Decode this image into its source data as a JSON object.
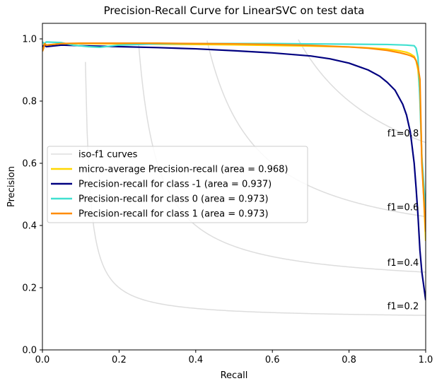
{
  "chart_data": {
    "type": "line",
    "title": "Precision-Recall Curve for LinearSVC on test data",
    "xlabel": "Recall",
    "ylabel": "Precision",
    "xlim": [
      0,
      1
    ],
    "ylim": [
      0,
      1.05
    ],
    "xticks": [
      "0.0",
      "0.2",
      "0.4",
      "0.6",
      "0.8",
      "1.0"
    ],
    "yticks": [
      "0.0",
      "0.2",
      "0.4",
      "0.6",
      "0.8",
      "1.0"
    ],
    "grid": false,
    "legend_position": "center-left",
    "iso_f1": {
      "legend_label": "iso-f1 curves",
      "color": "#dddddd",
      "values": [
        0.2,
        0.4,
        0.6,
        0.8
      ],
      "labels": [
        "f1=0.2",
        "f1=0.4",
        "f1=0.6",
        "f1=0.8"
      ]
    },
    "series": [
      {
        "name": "micro-average Precision-recall (area = 0.968)",
        "color": "#ffd700",
        "x": [
          0.0,
          0.005,
          0.01,
          0.05,
          0.1,
          0.2,
          0.3,
          0.4,
          0.5,
          0.6,
          0.7,
          0.8,
          0.85,
          0.9,
          0.93,
          0.95,
          0.96,
          0.97,
          0.975,
          0.98,
          0.985,
          0.99,
          1.0
        ],
        "y": [
          0.97,
          0.985,
          0.98,
          0.985,
          0.985,
          0.984,
          0.983,
          0.982,
          0.981,
          0.979,
          0.977,
          0.974,
          0.971,
          0.967,
          0.962,
          0.957,
          0.952,
          0.944,
          0.93,
          0.9,
          0.82,
          0.62,
          0.35
        ]
      },
      {
        "name": "Precision-recall for class -1 (area = 0.937)",
        "color": "#000080",
        "x": [
          0.0,
          0.005,
          0.01,
          0.05,
          0.1,
          0.2,
          0.3,
          0.4,
          0.5,
          0.6,
          0.7,
          0.75,
          0.8,
          0.85,
          0.88,
          0.9,
          0.92,
          0.94,
          0.95,
          0.96,
          0.97,
          0.975,
          0.98,
          0.985,
          0.99,
          1.0
        ],
        "y": [
          0.975,
          0.98,
          0.975,
          0.98,
          0.978,
          0.975,
          0.972,
          0.968,
          0.962,
          0.955,
          0.945,
          0.936,
          0.922,
          0.9,
          0.88,
          0.86,
          0.835,
          0.79,
          0.755,
          0.7,
          0.6,
          0.52,
          0.43,
          0.32,
          0.25,
          0.16
        ]
      },
      {
        "name": "Precision-recall for class 0 (area = 0.973)",
        "color": "#40e0d0",
        "x": [
          0.0,
          0.005,
          0.01,
          0.05,
          0.08,
          0.12,
          0.15,
          0.2,
          0.3,
          0.4,
          0.5,
          0.6,
          0.7,
          0.8,
          0.9,
          0.95,
          0.97,
          0.975,
          0.98,
          0.985,
          0.99,
          1.0
        ],
        "y": [
          0.99,
          0.985,
          0.99,
          0.988,
          0.98,
          0.975,
          0.973,
          0.98,
          0.984,
          0.985,
          0.985,
          0.985,
          0.984,
          0.983,
          0.982,
          0.98,
          0.978,
          0.97,
          0.94,
          0.8,
          0.62,
          0.45
        ]
      },
      {
        "name": "Precision-recall for class 1 (area = 0.973)",
        "color": "#ff8c00",
        "x": [
          0.0,
          0.003,
          0.006,
          0.01,
          0.05,
          0.1,
          0.2,
          0.3,
          0.4,
          0.5,
          0.6,
          0.7,
          0.8,
          0.85,
          0.9,
          0.93,
          0.95,
          0.96,
          0.97,
          0.975,
          0.98,
          0.985,
          0.99,
          1.0
        ],
        "y": [
          0.96,
          0.97,
          0.985,
          0.98,
          0.985,
          0.986,
          0.986,
          0.986,
          0.985,
          0.984,
          0.982,
          0.979,
          0.974,
          0.97,
          0.963,
          0.956,
          0.95,
          0.946,
          0.94,
          0.93,
          0.91,
          0.87,
          0.6,
          0.38
        ]
      }
    ]
  }
}
